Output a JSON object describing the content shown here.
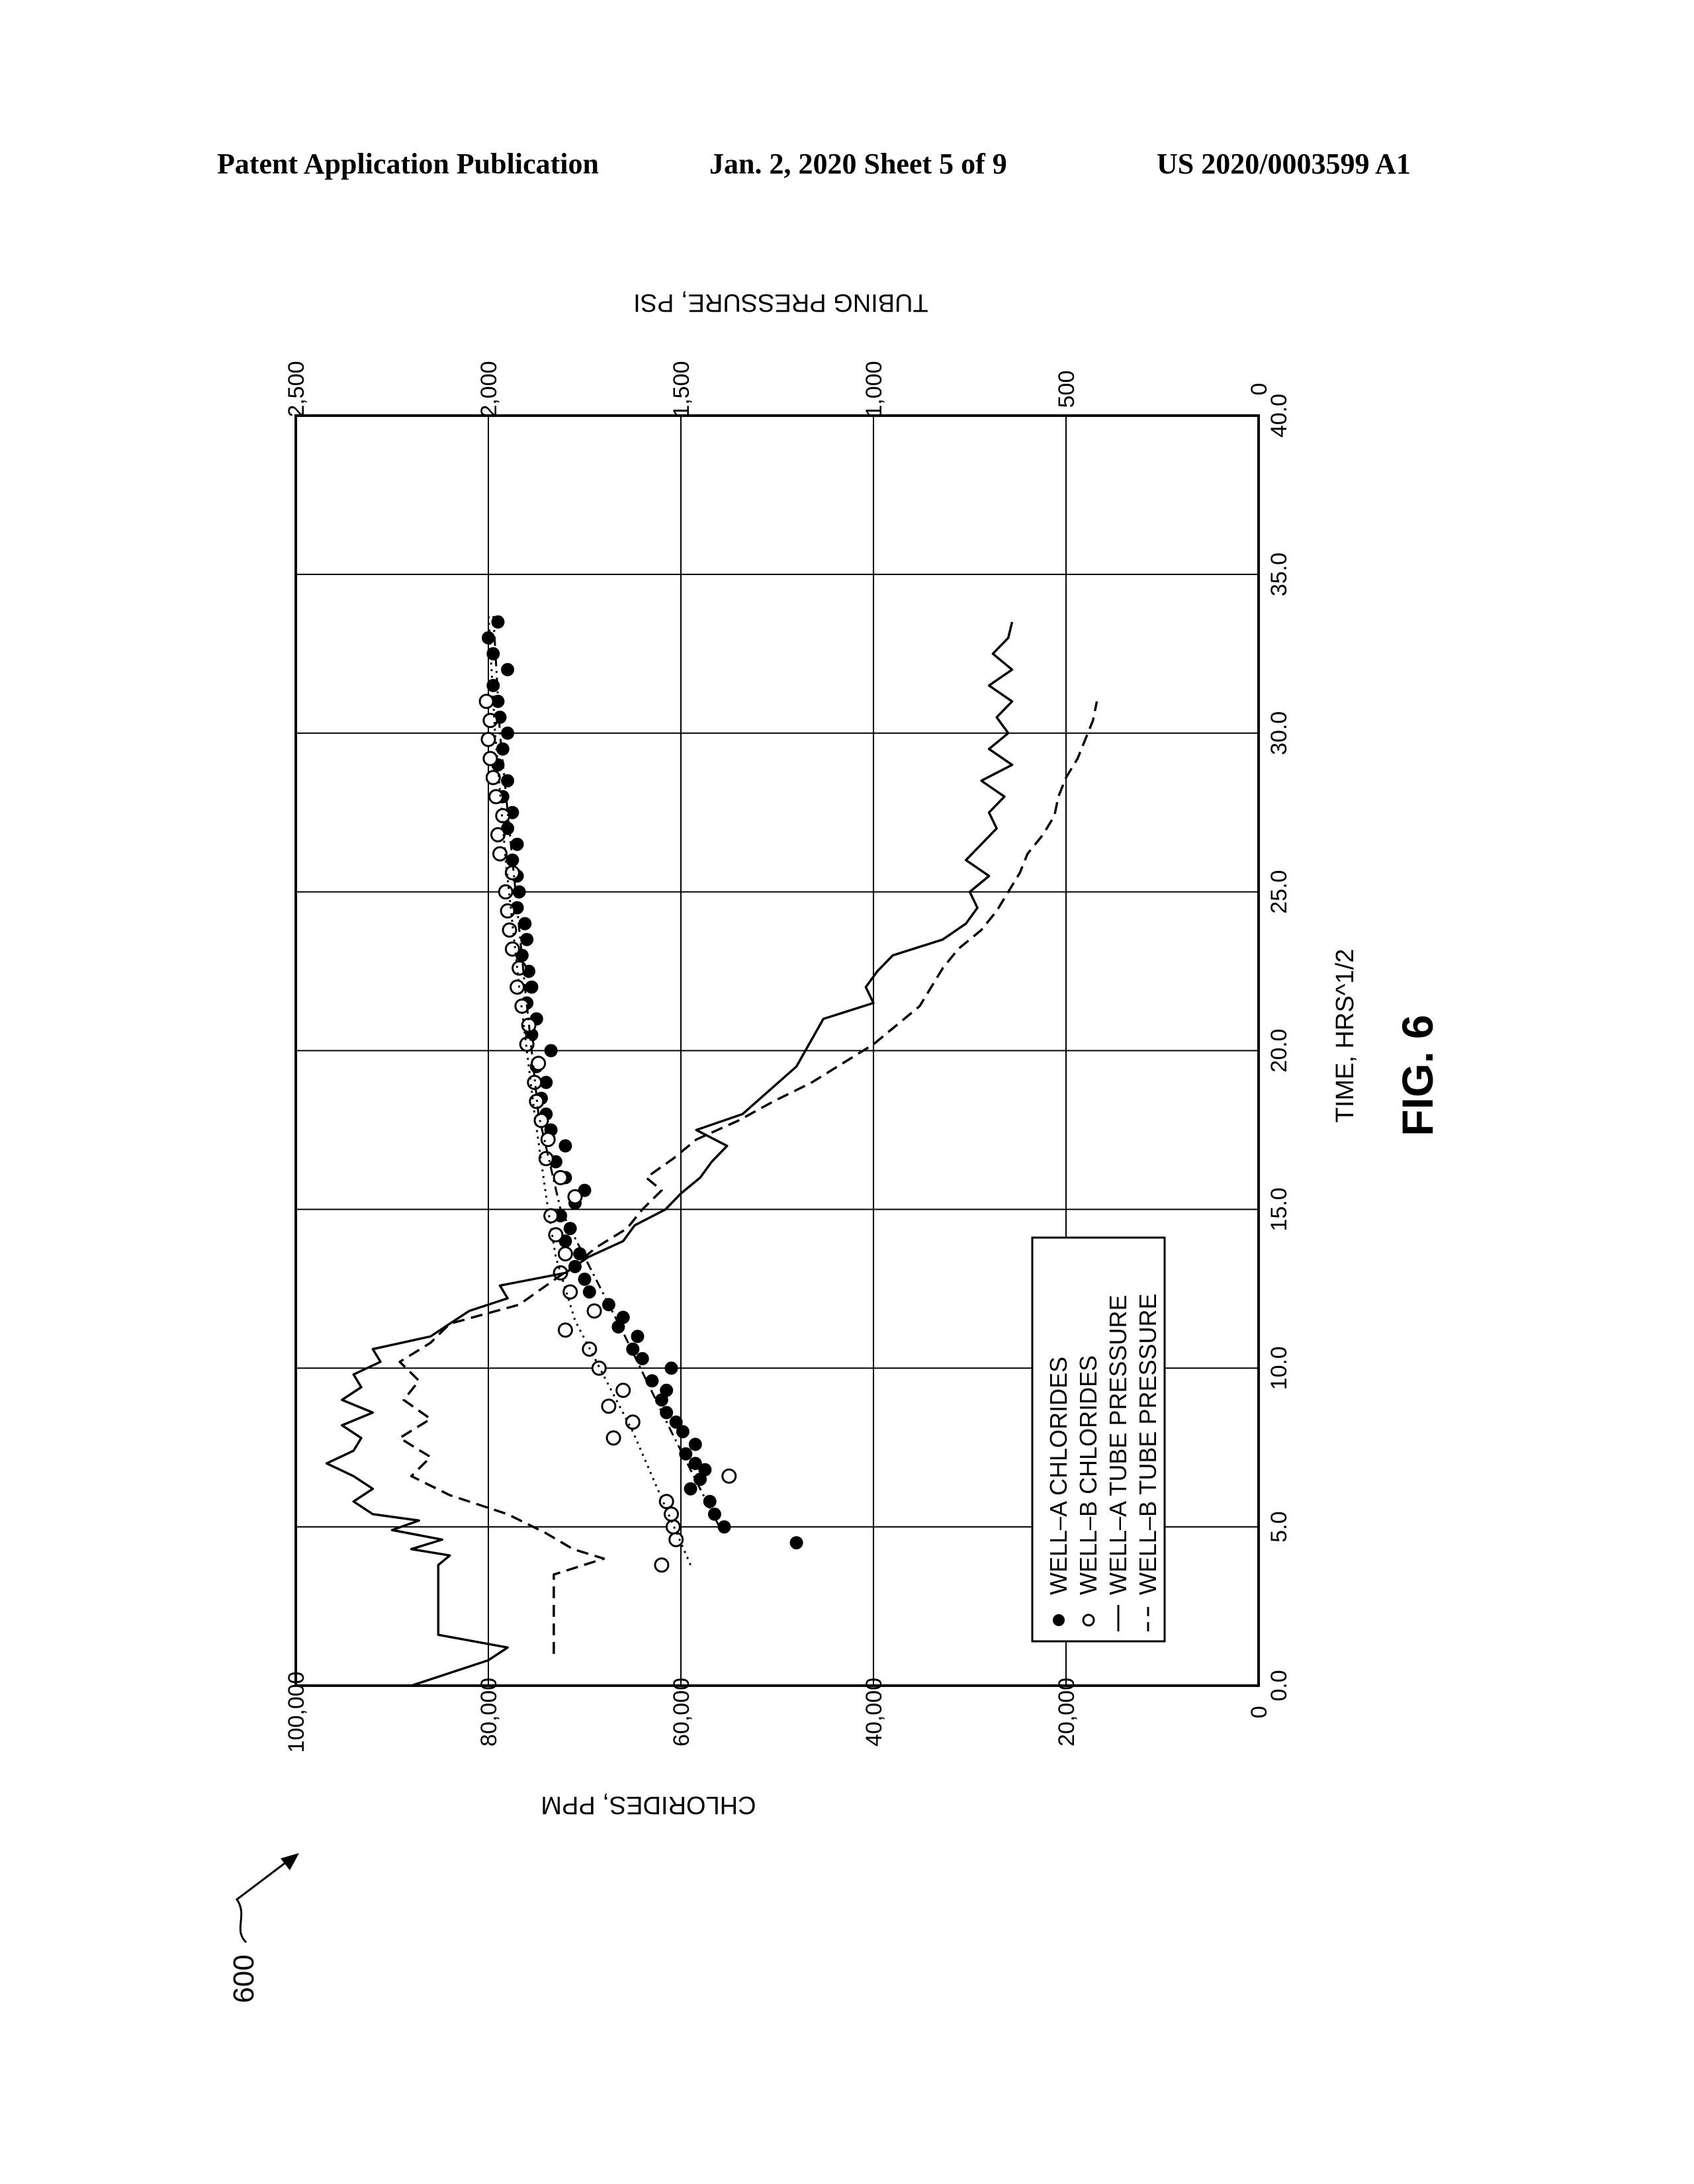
{
  "header": {
    "left": "Patent Application Publication",
    "center": "Jan. 2, 2020   Sheet 5 of 9",
    "right": "US 2020/0003599 A1"
  },
  "figure": {
    "label": "FIG. 6",
    "ref": "600"
  },
  "chart_data": {
    "type": "scatter",
    "xlabel": "TIME, HRS^1/2",
    "ylabel_left": "CHLORIDES, PPM",
    "ylabel_right": "TUBING PRESSURE, PSI",
    "xlim": [
      0,
      40
    ],
    "ylim_left": [
      0,
      100000
    ],
    "ylim_right": [
      0,
      2500
    ],
    "x_ticks": [
      "0.0",
      "5.0",
      "10.0",
      "15.0",
      "20.0",
      "25.0",
      "30.0",
      "35.0",
      "40.0"
    ],
    "y_left_ticks": [
      "0",
      "20,000",
      "40,000",
      "60,000",
      "80,000",
      "100,000"
    ],
    "y_right_ticks": [
      "0",
      "500",
      "1,000",
      "1,500",
      "2,000",
      "2,500"
    ],
    "grid": true,
    "orientation": "rotated 90 degrees counter-clockwise",
    "legend_position": "bottom-left",
    "legend": [
      "WELL–A CHLORIDES",
      "WELL–B CHLORIDES",
      "WELL–A TUBE PRESSURE",
      "WELL–B TUBE PRESSURE"
    ],
    "series": [
      {
        "name": "WELL–A CHLORIDES",
        "marker": "filled-circle",
        "axis": "left",
        "x": [
          4.5,
          5.0,
          5.4,
          5.8,
          6.2,
          6.5,
          6.8,
          7.0,
          7.3,
          7.6,
          8.0,
          8.3,
          8.6,
          9.0,
          9.3,
          9.6,
          10.0,
          10.3,
          10.6,
          11.0,
          11.3,
          11.6,
          12.0,
          12.4,
          12.8,
          13.2,
          13.6,
          14.0,
          14.4,
          14.8,
          15.2,
          15.6,
          16.0,
          16.5,
          17.0,
          17.5,
          18.0,
          18.5,
          19.0,
          19.5,
          20.0,
          20.5,
          21.0,
          21.5,
          22.0,
          22.5,
          23.0,
          23.5,
          24.0,
          24.5,
          25.0,
          25.5,
          26.0,
          26.5,
          27.0,
          27.5,
          28.0,
          28.5,
          29.0,
          29.5,
          30.0,
          30.5,
          31.0,
          31.5,
          32.0,
          32.5,
          33.0,
          33.5
        ],
        "y": [
          48000,
          55500,
          56500,
          57000,
          59000,
          58000,
          57500,
          58500,
          59500,
          58500,
          59800,
          60500,
          61500,
          62000,
          61500,
          63000,
          61000,
          64000,
          65000,
          64500,
          66500,
          66000,
          67500,
          69500,
          70000,
          71000,
          70500,
          72000,
          71500,
          72500,
          71000,
          70000,
          72000,
          73000,
          72000,
          73500,
          74000,
          74500,
          74000,
          75000,
          73500,
          75500,
          75000,
          76000,
          75500,
          75800,
          76500,
          76000,
          76200,
          77000,
          76800,
          77000,
          77500,
          77000,
          78000,
          77500,
          78500,
          78000,
          79000,
          78500,
          78000,
          78800,
          79000,
          79500,
          78000,
          79500,
          80000,
          79000
        ]
      },
      {
        "name": "WELL–B CHLORIDES",
        "marker": "open-circle",
        "axis": "left",
        "x": [
          3.8,
          4.6,
          5.0,
          5.4,
          5.8,
          6.6,
          7.8,
          8.3,
          8.8,
          9.3,
          10.0,
          10.6,
          11.2,
          11.8,
          12.4,
          13.0,
          13.6,
          14.2,
          14.8,
          15.4,
          16.0,
          16.6,
          17.2,
          17.8,
          18.4,
          19.0,
          19.6,
          20.2,
          20.8,
          21.4,
          22.0,
          22.6,
          23.2,
          23.8,
          24.4,
          25.0,
          25.6,
          26.2,
          26.8,
          27.4,
          28.0,
          28.6,
          29.2,
          29.8,
          30.4,
          31.0
        ],
        "y": [
          62000,
          60500,
          60800,
          61000,
          61500,
          55000,
          67000,
          65000,
          67500,
          66000,
          68500,
          69500,
          72000,
          69000,
          71500,
          72500,
          72000,
          73000,
          73500,
          71000,
          72500,
          74000,
          73800,
          74500,
          75000,
          75200,
          74800,
          76000,
          75800,
          76500,
          77000,
          76800,
          77500,
          77800,
          78000,
          78200,
          77500,
          78800,
          79000,
          78500,
          79200,
          79500,
          79800,
          80000,
          79800,
          80200
        ]
      },
      {
        "name": "WELL–A TUBE PRESSURE",
        "line": "solid",
        "axis": "right",
        "x": [
          0.0,
          0.8,
          1.2,
          1.6,
          3.8,
          4.1,
          4.3,
          4.6,
          4.9,
          5.2,
          5.4,
          5.8,
          6.2,
          6.6,
          7.0,
          7.4,
          7.8,
          8.2,
          8.6,
          9.0,
          9.4,
          9.8,
          10.2,
          10.6,
          11.0,
          11.4,
          11.8,
          12.2,
          12.6,
          13.0,
          13.5,
          14.0,
          14.5,
          15.0,
          15.5,
          16.0,
          16.5,
          17.0,
          17.5,
          18.0,
          19.5,
          21.0,
          21.5,
          22.0,
          22.5,
          23.0,
          23.5,
          24.0,
          24.5,
          25.0,
          25.5,
          26.0,
          26.5,
          27.0,
          27.5,
          28.0,
          28.5,
          29.0,
          29.5,
          30.0,
          30.5,
          31.0,
          31.5,
          32.0,
          32.5,
          33.0,
          33.5
        ],
        "y": [
          2200,
          2000,
          1950,
          2130,
          2130,
          2100,
          2200,
          2120,
          2250,
          2180,
          2300,
          2350,
          2300,
          2350,
          2420,
          2350,
          2330,
          2380,
          2300,
          2380,
          2330,
          2350,
          2280,
          2300,
          2150,
          2100,
          2050,
          1950,
          1970,
          1800,
          1740,
          1650,
          1620,
          1540,
          1500,
          1450,
          1420,
          1380,
          1460,
          1340,
          1200,
          1130,
          1000,
          1020,
          990,
          950,
          820,
          760,
          730,
          750,
          700,
          760,
          720,
          680,
          700,
          660,
          720,
          640,
          700,
          650,
          680,
          640,
          700,
          640,
          690,
          650,
          640
        ]
      },
      {
        "name": "WELL–B TUBE PRESSURE",
        "line": "dashed",
        "axis": "right",
        "x": [
          1.0,
          3.5,
          4.0,
          4.3,
          4.8,
          5.4,
          6.0,
          6.6,
          7.2,
          7.8,
          8.4,
          9.0,
          9.6,
          10.2,
          10.8,
          11.4,
          12.0,
          12.6,
          13.2,
          13.8,
          14.4,
          15.0,
          15.6,
          16.0,
          16.6,
          17.2,
          17.8,
          18.4,
          19.0,
          19.6,
          20.2,
          20.8,
          21.4,
          22.0,
          22.6,
          23.2,
          23.8,
          24.4,
          25.0,
          25.6,
          26.2,
          26.8,
          27.4,
          28.0,
          28.6,
          29.2,
          29.8,
          30.4,
          31.0
        ],
        "y": [
          1830,
          1830,
          1700,
          1780,
          1850,
          1950,
          2100,
          2200,
          2150,
          2230,
          2150,
          2220,
          2180,
          2230,
          2150,
          2100,
          1920,
          1850,
          1780,
          1720,
          1640,
          1600,
          1550,
          1590,
          1520,
          1460,
          1350,
          1260,
          1160,
          1080,
          1000,
          940,
          880,
          850,
          820,
          780,
          720,
          680,
          650,
          620,
          600,
          560,
          530,
          520,
          500,
          470,
          450,
          430,
          420
        ]
      },
      {
        "name": "",
        "line": "dotted",
        "axis": "left",
        "role": "trend",
        "x": [
          3.8,
          8.0,
          11.5,
          13.5,
          15.0,
          18.0,
          22.0,
          26.0,
          30.0,
          33.8
        ],
        "y": [
          59000,
          65000,
          71000,
          73000,
          73800,
          75200,
          76800,
          78200,
          79300,
          80000
        ]
      },
      {
        "name": "",
        "line": "dash-dot",
        "axis": "left",
        "role": "trend",
        "x": [
          5.0,
          8.0,
          11.0,
          13.5,
          15.0,
          18.0,
          22.0,
          26.0,
          30.0,
          33.8
        ],
        "y": [
          56000,
          61000,
          65800,
          70000,
          72500,
          74800,
          76200,
          77500,
          78800,
          79500
        ]
      }
    ]
  }
}
